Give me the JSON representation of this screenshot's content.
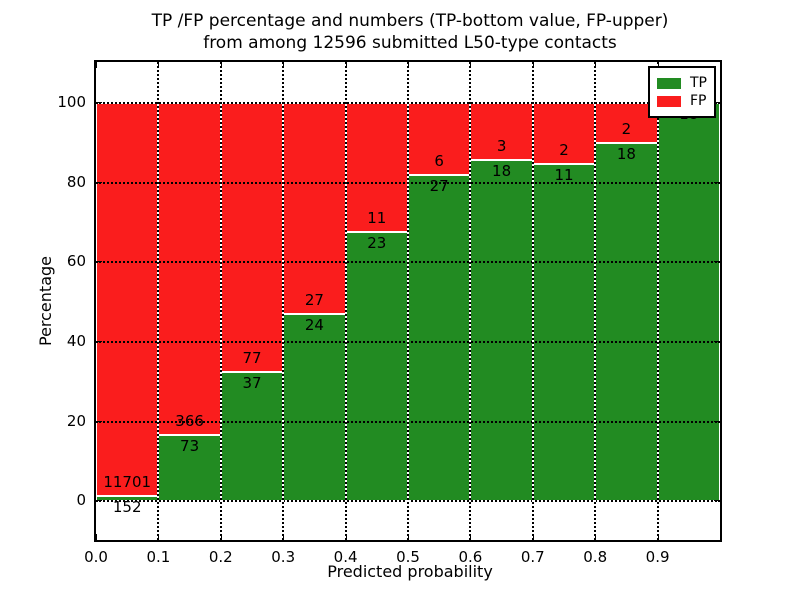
{
  "figure": {
    "title_line1": "TP /FP percentage and numbers (TP-bottom value, FP-upper)",
    "title_line2": "from among 12596 submitted L50-type contacts",
    "xlabel": "Predicted probability",
    "ylabel": "Percentage"
  },
  "legend": {
    "tp_label": "TP",
    "fp_label": "FP"
  },
  "chart_data": {
    "type": "bar",
    "stacked": true,
    "title": "TP /FP percentage and numbers (TP-bottom value, FP-upper) from among 12596 submitted L50-type contacts",
    "xlabel": "Predicted probability",
    "ylabel": "Percentage",
    "total_submitted": 12596,
    "bin_edges": [
      0.0,
      0.1,
      0.2,
      0.3,
      0.4,
      0.5,
      0.6,
      0.7,
      0.8,
      0.9,
      1.0
    ],
    "x_tick_labels": [
      "0.0",
      "0.1",
      "0.2",
      "0.3",
      "0.4",
      "0.5",
      "0.6",
      "0.7",
      "0.8",
      "0.9"
    ],
    "y_tick_values": [
      0,
      20,
      40,
      60,
      80,
      100
    ],
    "xlim": [
      0.0,
      1.0
    ],
    "ylim": [
      -10,
      110
    ],
    "grid": "dotted",
    "legend_position": "upper right",
    "series": [
      {
        "name": "TP",
        "color": "#228B22",
        "values": [
          152,
          73,
          37,
          24,
          23,
          27,
          18,
          11,
          18,
          18
        ]
      },
      {
        "name": "FP",
        "color": "#FA1D1D",
        "values": [
          11701,
          366,
          77,
          27,
          11,
          6,
          3,
          2,
          2,
          0
        ]
      }
    ],
    "tp_percent_per_bin": [
      1.28,
      16.63,
      32.46,
      47.06,
      67.65,
      81.82,
      85.71,
      84.62,
      90.0,
      100.0
    ]
  }
}
